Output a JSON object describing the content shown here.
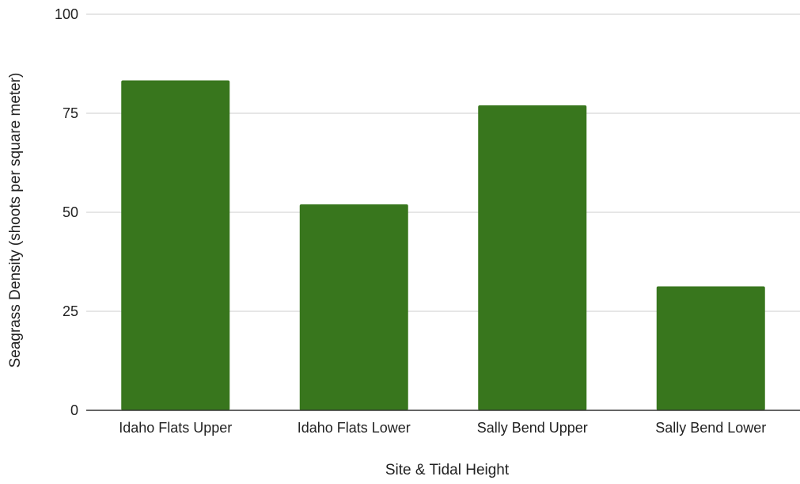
{
  "chart_data": {
    "type": "bar",
    "title": "",
    "xlabel": "Site & Tidal Height",
    "ylabel": "Seagrass Density (shoots per square meter)",
    "categories": [
      "Idaho Flats Upper",
      "Idaho Flats Lower",
      "Sally Bend Upper",
      "Sally Bend Lower"
    ],
    "values": [
      83.3,
      52,
      77,
      31.3
    ],
    "ylim": [
      0,
      100
    ],
    "yticks": [
      0,
      25,
      50,
      75,
      100
    ],
    "grid": true,
    "legend": "none",
    "bar_color": "#38761d",
    "grid_color": "#cccccc",
    "axis_color": "#333333"
  }
}
